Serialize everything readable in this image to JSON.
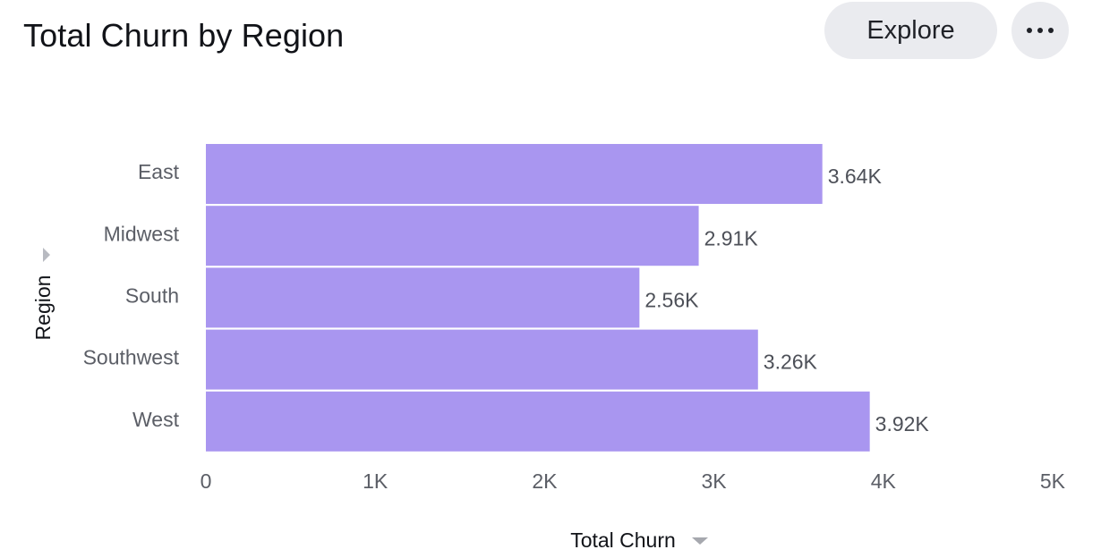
{
  "header": {
    "title": "Total Churn by Region",
    "explore_label": "Explore",
    "more_icon": "more-horizontal-icon"
  },
  "colors": {
    "bar": "#a996f0",
    "button_bg": "#eaebef",
    "axis_text": "#5b5e66"
  },
  "chart_data": {
    "type": "bar",
    "orientation": "horizontal",
    "title": "Total Churn by Region",
    "xlabel": "Total Churn",
    "ylabel": "Region",
    "categories": [
      "East",
      "Midwest",
      "South",
      "Southwest",
      "West"
    ],
    "values": [
      3640,
      2910,
      2560,
      3260,
      3920
    ],
    "value_labels": [
      "3.64K",
      "2.91K",
      "2.56K",
      "3.26K",
      "3.92K"
    ],
    "xlim": [
      0,
      5000
    ],
    "xticks": [
      0,
      1000,
      2000,
      3000,
      4000,
      5000
    ],
    "xtick_labels": [
      "0",
      "1K",
      "2K",
      "3K",
      "4K",
      "5K"
    ],
    "grid": false,
    "legend": "none"
  }
}
